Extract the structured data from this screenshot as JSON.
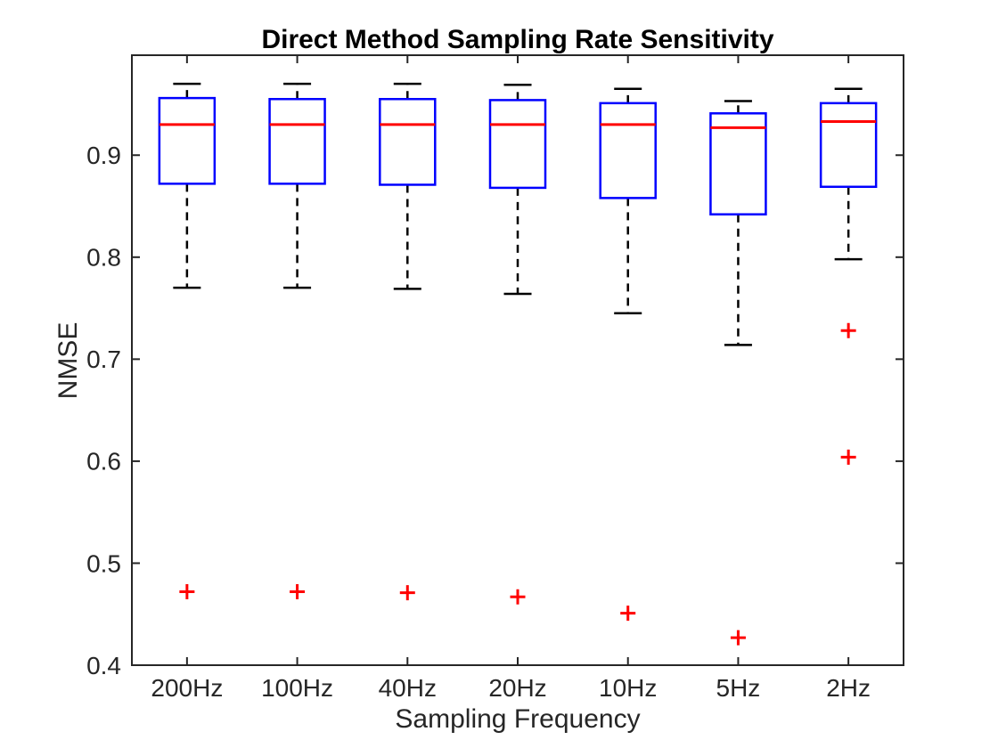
{
  "figure": {
    "background": "#FFFFFF"
  },
  "colors": {
    "box_edge": "#0000FF",
    "median": "#FF0000",
    "whisker": "#000000",
    "outlier": "#FF0000",
    "axis": "#262626",
    "title_text": "#000000"
  },
  "chart_data": {
    "type": "boxplot",
    "title": "Direct Method Sampling Rate Sensitivity",
    "xlabel": "Sampling Frequency",
    "ylabel": "NMSE",
    "categories": [
      "200Hz",
      "100Hz",
      "40Hz",
      "20Hz",
      "10Hz",
      "5Hz",
      "2Hz"
    ],
    "yticks": [
      0.4,
      0.5,
      0.6,
      0.7,
      0.8,
      0.9
    ],
    "ylim": [
      0.4,
      0.998
    ],
    "grid": false,
    "box_on": true,
    "tick_direction": "in",
    "whisker_style": "dashed",
    "outlier_marker": "+",
    "series": [
      {
        "category": "200Hz",
        "whisker_low": 0.77,
        "q1": 0.872,
        "median": 0.93,
        "q3": 0.956,
        "whisker_high": 0.97,
        "outliers": [
          0.472
        ]
      },
      {
        "category": "100Hz",
        "whisker_low": 0.77,
        "q1": 0.872,
        "median": 0.93,
        "q3": 0.955,
        "whisker_high": 0.97,
        "outliers": [
          0.472
        ]
      },
      {
        "category": "40Hz",
        "whisker_low": 0.769,
        "q1": 0.871,
        "median": 0.93,
        "q3": 0.955,
        "whisker_high": 0.97,
        "outliers": [
          0.471
        ]
      },
      {
        "category": "20Hz",
        "whisker_low": 0.764,
        "q1": 0.868,
        "median": 0.93,
        "q3": 0.954,
        "whisker_high": 0.969,
        "outliers": [
          0.467
        ]
      },
      {
        "category": "10Hz",
        "whisker_low": 0.745,
        "q1": 0.858,
        "median": 0.93,
        "q3": 0.951,
        "whisker_high": 0.965,
        "outliers": [
          0.451
        ]
      },
      {
        "category": "5Hz",
        "whisker_low": 0.714,
        "q1": 0.842,
        "median": 0.927,
        "q3": 0.941,
        "whisker_high": 0.953,
        "outliers": [
          0.427
        ]
      },
      {
        "category": "2Hz",
        "whisker_low": 0.798,
        "q1": 0.869,
        "median": 0.933,
        "q3": 0.951,
        "whisker_high": 0.965,
        "outliers": [
          0.728,
          0.604
        ]
      }
    ]
  }
}
